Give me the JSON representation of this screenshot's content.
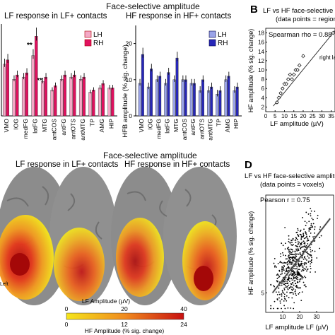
{
  "top_title": "Face-selective amplitude",
  "bottom_title": "Face-selective amplitude",
  "panel_letters": {
    "b": "B",
    "d": "D"
  },
  "colors": {
    "lh_light": "#f4a8c6",
    "rh_dark": "#e0115f",
    "lh_blue_light": "#9aa3e8",
    "rh_blue_dark": "#2727b8",
    "heat_low": "#f5e51b",
    "heat_mid": "#f08a1e",
    "heat_high": "#c81010"
  },
  "brain_maps": {
    "left_title": "LF response in LF+ contacts",
    "right_title": "HF response in HF+ contacts",
    "side_labels": [
      "Left"
    ],
    "colorbar": {
      "lf_label": "LF Amplitude (µV)",
      "lf_ticks": [
        "0",
        "20",
        "40"
      ],
      "hf_label": "HF Amplitude (% sig. change)",
      "hf_ticks": [
        "0",
        "12",
        "24"
      ]
    }
  },
  "chart_data": [
    {
      "id": "lf_bars",
      "type": "bar",
      "title": "LF response in LF+ contacts",
      "categories": [
        "VMO",
        "IOG",
        "medFG",
        "latFG",
        "MTG",
        "antCOS",
        "antFG",
        "antOTS",
        "antMTG",
        "TP",
        "AMG",
        "HIP"
      ],
      "series": [
        {
          "name": "LH",
          "values": [
            24,
            17,
            18,
            28,
            16,
            12,
            17,
            18,
            17,
            11,
            13,
            13
          ]
        },
        {
          "name": "RH",
          "values": [
            26,
            19,
            20,
            37,
            18,
            14,
            19,
            19,
            18,
            12,
            15,
            13
          ]
        }
      ],
      "annotations": [
        "**",
        "**"
      ]
    },
    {
      "id": "hf_bars",
      "type": "bar",
      "title": "HF response in HF+ contacts",
      "ylabel": "HFB amplitude (% sig. change)",
      "yticks": [
        0,
        10,
        20
      ],
      "ylim": [
        0,
        25
      ],
      "categories": [
        "VMO",
        "IOG",
        "medFG",
        "latFG",
        "MTG",
        "antCOS",
        "antFG",
        "antOTS",
        "antMTG",
        "TP",
        "AMG",
        "HIP"
      ],
      "series": [
        {
          "name": "LH",
          "values": [
            9,
            8,
            10,
            9,
            10,
            10,
            9,
            7,
            7,
            6,
            10,
            7
          ]
        },
        {
          "name": "RH",
          "values": [
            17,
            13,
            11,
            12,
            16,
            10,
            9,
            10,
            8,
            7,
            11,
            8
          ]
        }
      ]
    },
    {
      "id": "scatter_regions",
      "type": "scatter",
      "title": "LF vs HF face-selective amplitude",
      "subtitle": "(data points = regions)",
      "annotation": "Spearman rho = 0.88",
      "point_label": "right latFG",
      "xlabel": "LF amplitude (µV)",
      "ylabel": "HF amplitude (% sig. change)",
      "xticks": [
        0,
        5,
        10,
        15,
        20,
        25,
        30,
        35
      ],
      "yticks": [
        2,
        4,
        6,
        8,
        10,
        12,
        14,
        16,
        18
      ],
      "xlim": [
        0,
        37
      ],
      "ylim": [
        1,
        19
      ],
      "x": [
        6,
        7,
        8,
        9,
        10,
        11,
        12,
        13,
        14,
        15,
        16,
        17,
        18,
        20,
        36
      ],
      "y": [
        3,
        4,
        5,
        6,
        7,
        7,
        8,
        9,
        8,
        9,
        10,
        10,
        11,
        13,
        18
      ],
      "regression": true
    },
    {
      "id": "scatter_voxels",
      "type": "scatter",
      "title": "LF vs HF face-selective amplitude",
      "subtitle": "(data points = voxels)",
      "annotation": "Pearson r = 0.75",
      "xlabel": "LF amplitude LF (µV)",
      "ylabel": "HF amplitude (% sig. change)",
      "xticks": [
        10,
        20,
        30
      ],
      "yticks": [
        5
      ],
      "xlim": [
        0,
        40
      ],
      "ylim": [
        0,
        30
      ],
      "n_points": 600,
      "regression": true
    }
  ]
}
